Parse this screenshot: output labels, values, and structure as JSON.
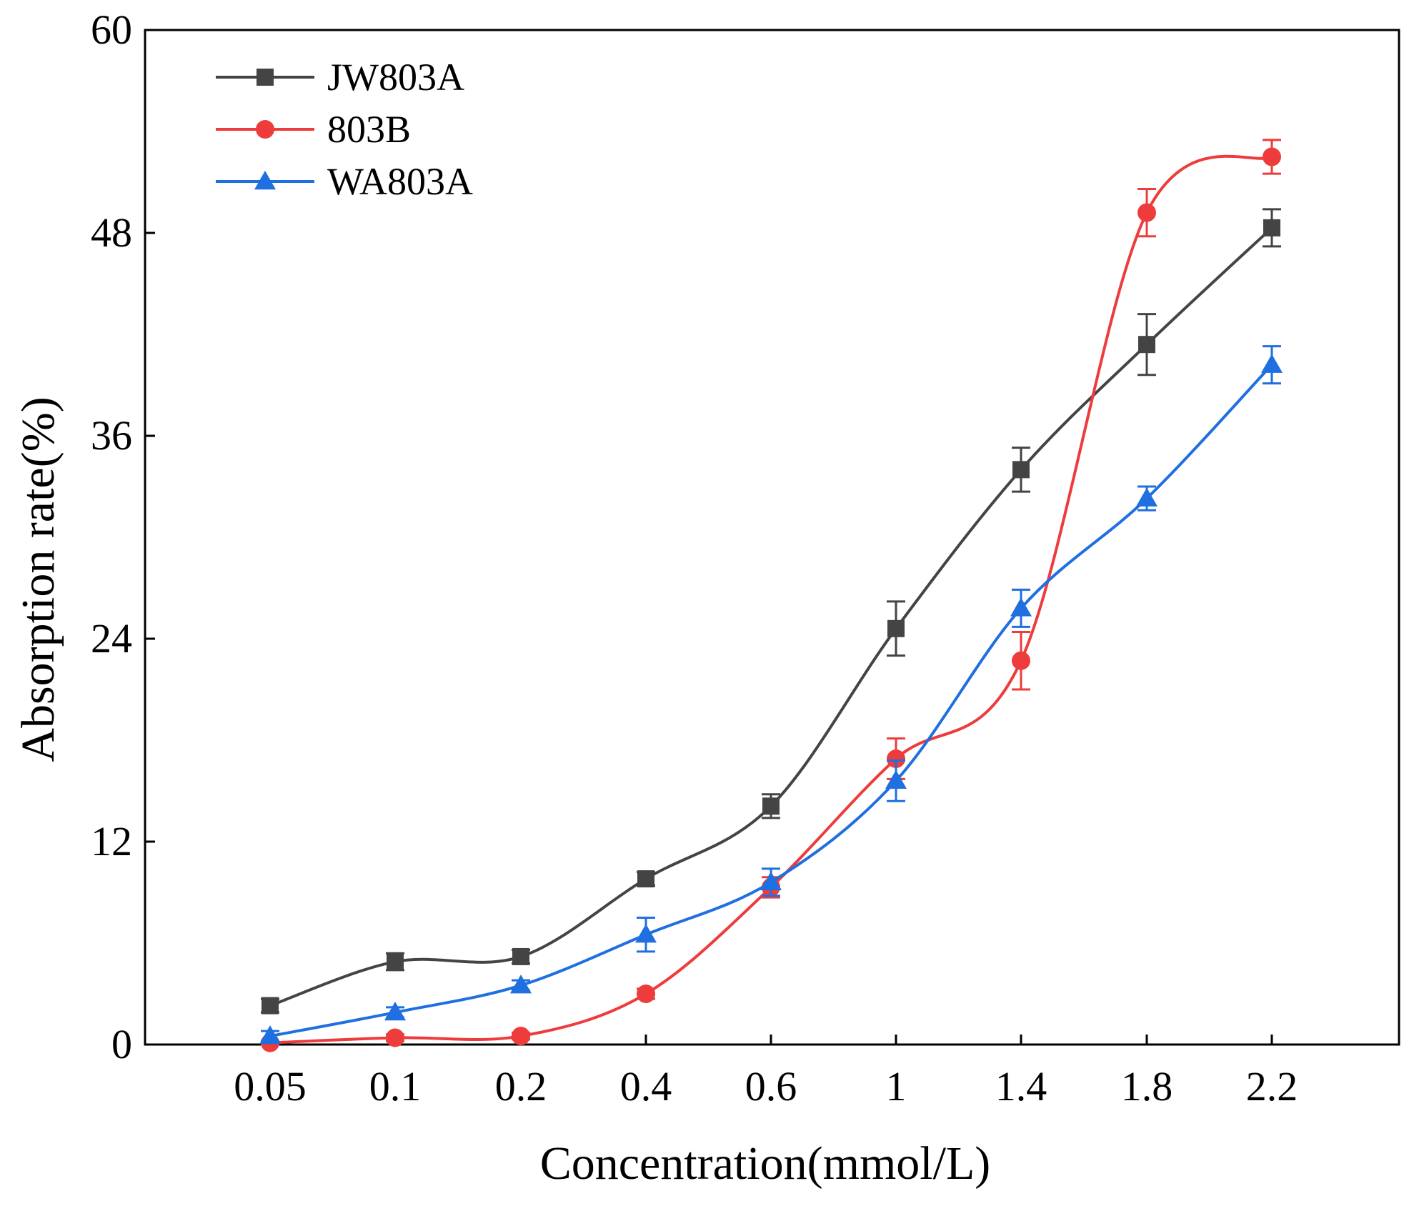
{
  "chart_data": {
    "type": "line",
    "title": "",
    "xlabel": "Concentration(mmol/L)",
    "ylabel": "Absorption rate(%)",
    "categories": [
      "0.05",
      "0.1",
      "0.2",
      "0.4",
      "0.6",
      "1",
      "1.4",
      "1.8",
      "2.2"
    ],
    "ylim": [
      0,
      60
    ],
    "yticks": [
      "0",
      "12",
      "24",
      "36",
      "48",
      "60"
    ],
    "grid": false,
    "legend_position": "top-left",
    "series": [
      {
        "name": "JW803A",
        "color": "#444444",
        "marker": "square",
        "values": [
          2.3,
          4.9,
          5.2,
          9.8,
          14.1,
          24.6,
          34.0,
          41.4,
          48.3
        ],
        "errors": [
          0.4,
          0.5,
          0.4,
          0.4,
          0.7,
          1.6,
          1.3,
          1.8,
          1.1
        ]
      },
      {
        "name": "803B",
        "color": "#ee3b3b",
        "marker": "circle",
        "values": [
          0.1,
          0.4,
          0.5,
          3.0,
          9.3,
          16.9,
          22.7,
          49.2,
          52.5
        ],
        "errors": [
          0.1,
          0.2,
          0.2,
          0.3,
          0.6,
          1.2,
          1.7,
          1.4,
          1.0
        ]
      },
      {
        "name": "WA803A",
        "color": "#1f6fe0",
        "marker": "triangle",
        "values": [
          0.5,
          1.9,
          3.5,
          6.5,
          9.6,
          15.6,
          25.8,
          32.3,
          40.2
        ],
        "errors": [
          0.3,
          0.3,
          0.3,
          1.0,
          0.8,
          1.2,
          1.1,
          0.7,
          1.1
        ]
      }
    ]
  }
}
